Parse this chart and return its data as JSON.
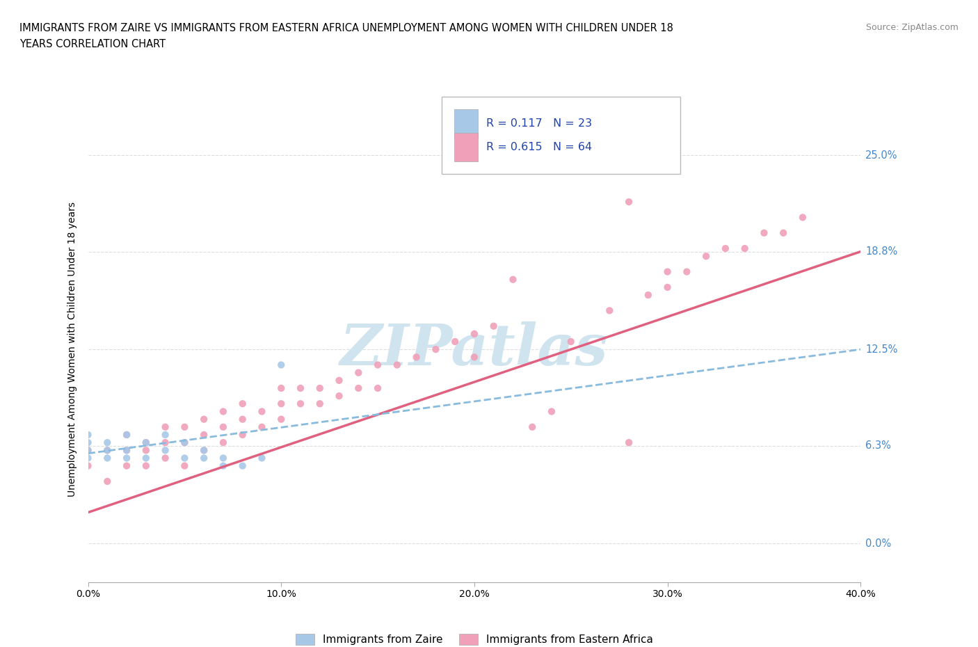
{
  "title_line1": "IMMIGRANTS FROM ZAIRE VS IMMIGRANTS FROM EASTERN AFRICA UNEMPLOYMENT AMONG WOMEN WITH CHILDREN UNDER 18",
  "title_line2": "YEARS CORRELATION CHART",
  "source": "Source: ZipAtlas.com",
  "ylabel": "Unemployment Among Women with Children Under 18 years",
  "xlim": [
    0.0,
    0.4
  ],
  "ylim": [
    -0.025,
    0.275
  ],
  "ytick_vals": [
    0.0,
    0.063,
    0.125,
    0.188,
    0.25
  ],
  "ytick_labels_right": [
    "0.0%",
    "6.3%",
    "12.5%",
    "18.8%",
    "25.0%"
  ],
  "xtick_vals": [
    0.0,
    0.1,
    0.2,
    0.3,
    0.4
  ],
  "xtick_labels": [
    "0.0%",
    "10.0%",
    "20.0%",
    "30.0%",
    "40.0%"
  ],
  "zaire_color": "#a8c8e8",
  "eastern_africa_color": "#f0a0b8",
  "zaire_line_color": "#88bbdd",
  "eastern_africa_line_color": "#e06080",
  "R_zaire": 0.117,
  "N_zaire": 23,
  "R_eastern": 0.615,
  "N_eastern": 64,
  "watermark": "ZIPatlas",
  "watermark_color": "#d0e4f0",
  "grid_color": "#dddddd",
  "right_label_color": "#4488cc",
  "legend_text_color": "#2244aa",
  "zaire_x": [
    0.0,
    0.0,
    0.0,
    0.0,
    0.01,
    0.01,
    0.01,
    0.02,
    0.02,
    0.02,
    0.03,
    0.03,
    0.04,
    0.04,
    0.05,
    0.05,
    0.06,
    0.06,
    0.07,
    0.07,
    0.08,
    0.09,
    0.1
  ],
  "zaire_y": [
    0.055,
    0.06,
    0.065,
    0.07,
    0.055,
    0.06,
    0.065,
    0.055,
    0.06,
    0.07,
    0.055,
    0.065,
    0.06,
    0.07,
    0.055,
    0.065,
    0.055,
    0.06,
    0.05,
    0.055,
    0.05,
    0.055,
    0.115
  ],
  "eastern_x": [
    0.0,
    0.0,
    0.01,
    0.01,
    0.02,
    0.02,
    0.02,
    0.03,
    0.03,
    0.03,
    0.04,
    0.04,
    0.04,
    0.05,
    0.05,
    0.05,
    0.06,
    0.06,
    0.06,
    0.07,
    0.07,
    0.07,
    0.08,
    0.08,
    0.08,
    0.09,
    0.09,
    0.1,
    0.1,
    0.1,
    0.11,
    0.11,
    0.12,
    0.12,
    0.13,
    0.13,
    0.14,
    0.14,
    0.15,
    0.15,
    0.16,
    0.17,
    0.18,
    0.19,
    0.2,
    0.2,
    0.21,
    0.22,
    0.23,
    0.24,
    0.25,
    0.27,
    0.28,
    0.28,
    0.29,
    0.3,
    0.3,
    0.31,
    0.32,
    0.33,
    0.34,
    0.35,
    0.36,
    0.37
  ],
  "eastern_y": [
    0.05,
    0.06,
    0.04,
    0.06,
    0.05,
    0.06,
    0.07,
    0.05,
    0.06,
    0.065,
    0.055,
    0.065,
    0.075,
    0.05,
    0.065,
    0.075,
    0.06,
    0.07,
    0.08,
    0.065,
    0.075,
    0.085,
    0.07,
    0.08,
    0.09,
    0.075,
    0.085,
    0.08,
    0.09,
    0.1,
    0.09,
    0.1,
    0.09,
    0.1,
    0.095,
    0.105,
    0.1,
    0.11,
    0.1,
    0.115,
    0.115,
    0.12,
    0.125,
    0.13,
    0.12,
    0.135,
    0.14,
    0.17,
    0.075,
    0.085,
    0.13,
    0.15,
    0.22,
    0.065,
    0.16,
    0.165,
    0.175,
    0.175,
    0.185,
    0.19,
    0.19,
    0.2,
    0.2,
    0.21
  ],
  "zaire_line_x": [
    0.0,
    0.4
  ],
  "zaire_line_y": [
    0.058,
    0.125
  ],
  "eastern_line_x": [
    0.0,
    0.4
  ],
  "eastern_line_y": [
    0.02,
    0.188
  ]
}
